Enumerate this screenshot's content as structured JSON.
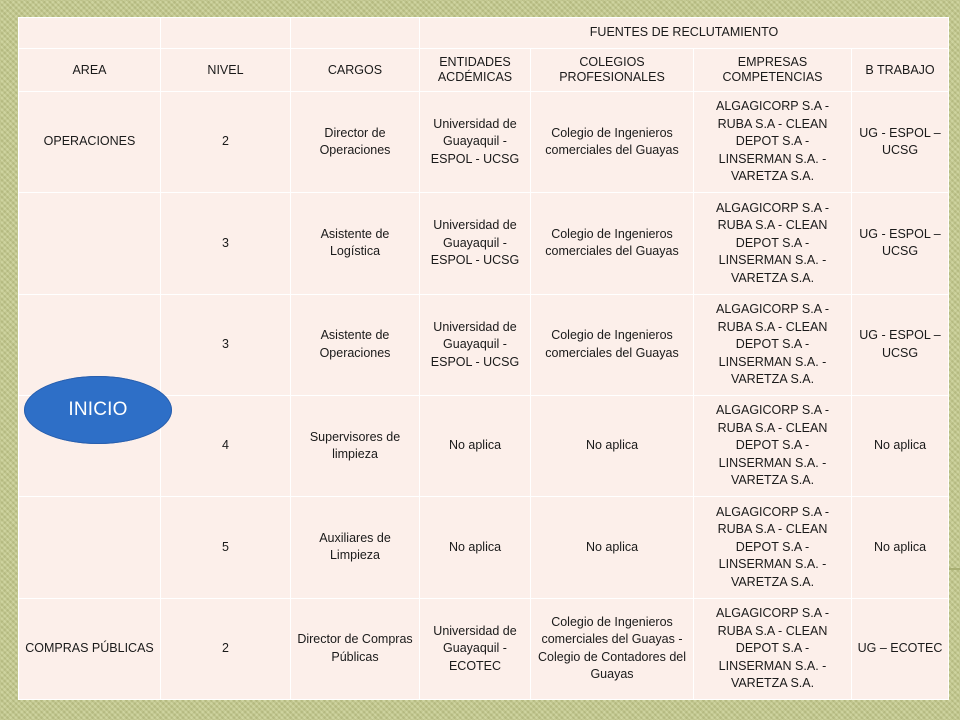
{
  "header": {
    "group_title": "FUENTES DE RECLUTAMIENTO",
    "columns": [
      "AREA",
      "NIVEL",
      "CARGOS",
      "ENTIDADES ACDÉMICAS",
      "COLEGIOS PROFESIONALES",
      "EMPRESAS COMPETENCIAS",
      "B TRABAJO"
    ]
  },
  "rows": [
    {
      "area": "OPERACIONES",
      "nivel": "2",
      "cargo": "Director de Operaciones",
      "entidades": "Universidad de Guayaquil - ESPOL - UCSG",
      "colegios": "Colegio de Ingenieros comerciales del Guayas",
      "empresas": "ALGAGICORP S.A  - RUBA S.A - CLEAN DEPOT S.A - LINSERMAN S.A. - VARETZA S.A.",
      "btrabajo": "UG - ESPOL – UCSG"
    },
    {
      "area": "",
      "nivel": "3",
      "cargo": "Asistente de Logística",
      "entidades": "Universidad de Guayaquil - ESPOL - UCSG",
      "colegios": "Colegio de Ingenieros comerciales del Guayas",
      "empresas": "ALGAGICORP S.A  - RUBA S.A - CLEAN DEPOT S.A - LINSERMAN S.A. - VARETZA S.A.",
      "btrabajo": "UG - ESPOL – UCSG"
    },
    {
      "area": "",
      "nivel": "3",
      "cargo": "Asistente de Operaciones",
      "entidades": "Universidad de Guayaquil - ESPOL - UCSG",
      "colegios": "Colegio de Ingenieros comerciales del Guayas",
      "empresas": "ALGAGICORP S.A  - RUBA S.A - CLEAN DEPOT S.A - LINSERMAN S.A. - VARETZA S.A.",
      "btrabajo": "UG - ESPOL – UCSG"
    },
    {
      "area": "",
      "nivel": "4",
      "cargo": "Supervisores de limpieza",
      "entidades": "No aplica",
      "colegios": "No aplica",
      "empresas": "ALGAGICORP S.A  - RUBA S.A - CLEAN DEPOT S.A - LINSERMAN S.A. - VARETZA S.A.",
      "btrabajo": "No aplica"
    },
    {
      "area": "",
      "nivel": "5",
      "cargo": "Auxiliares de Limpieza",
      "entidades": "No aplica",
      "colegios": "No aplica",
      "empresas": "ALGAGICORP S.A  - RUBA S.A - CLEAN DEPOT S.A - LINSERMAN S.A. - VARETZA S.A.",
      "btrabajo": "No aplica"
    },
    {
      "area": "COMPRAS PÚBLICAS",
      "nivel": "2",
      "cargo": "Director de Compras Públicas",
      "entidades": "Universidad de Guayaquil - ECOTEC",
      "colegios": "Colegio de Ingenieros comerciales del Guayas - Colegio de Contadores del Guayas",
      "empresas": "ALGAGICORP S.A  - RUBA S.A - CLEAN DEPOT S.A - LINSERMAN S.A. - VARETZA S.A.",
      "btrabajo": "UG – ECOTEC"
    }
  ],
  "inicio_button": {
    "label": "INICIO"
  },
  "colors": {
    "header_text": "#1f46b3",
    "cell_bg": "#fcefea",
    "button": "#2e6fc7",
    "frame": "#c5cb8c"
  }
}
